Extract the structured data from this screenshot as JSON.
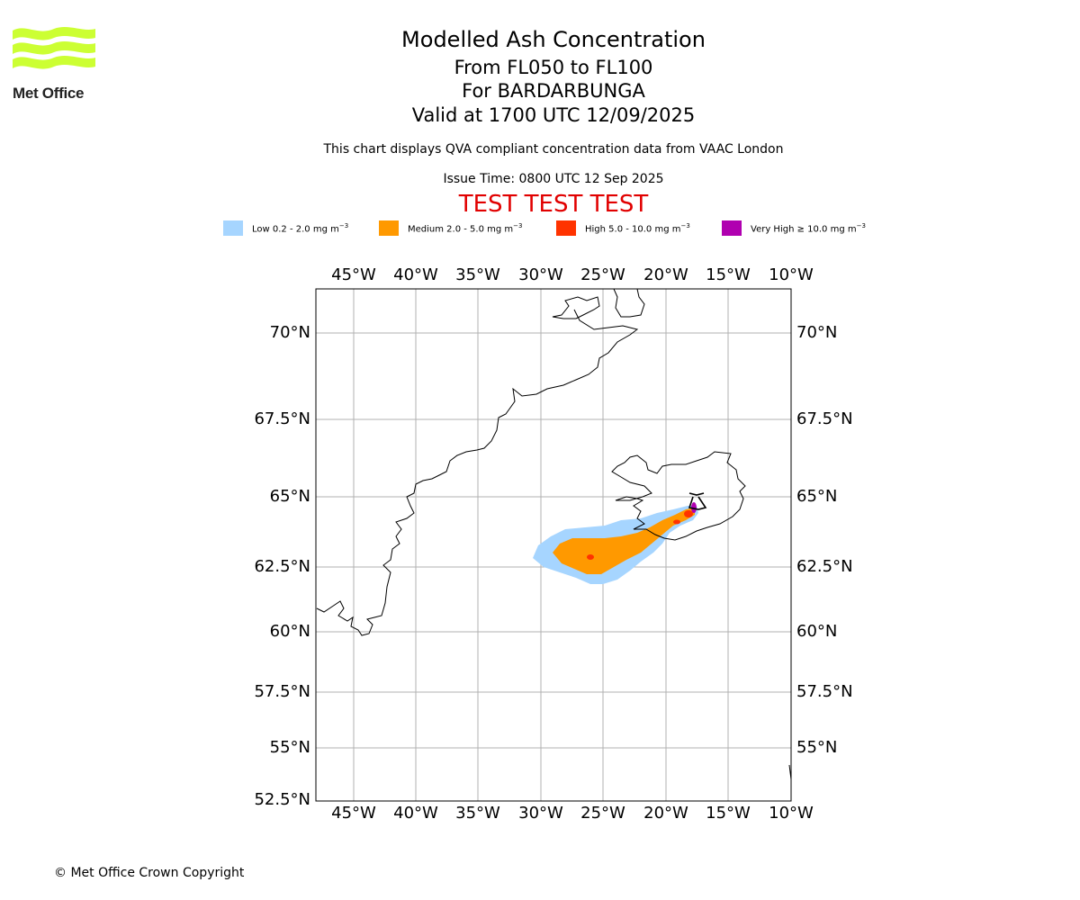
{
  "logo": {
    "text": "Met Office",
    "color": "#ccff33"
  },
  "header": {
    "title": "Modelled Ash Concentration",
    "levels": "From FL050 to FL100",
    "volcano": "For BARDARBUNGA",
    "valid": "Valid at 1700 UTC 12/09/2025",
    "description": "This chart displays QVA compliant concentration data from VAAC London",
    "issue_time": "Issue Time: 0800 UTC 12 Sep 2025",
    "test_banner": "TEST TEST TEST"
  },
  "legend": [
    {
      "label": "Low 0.2 - 2.0 mg m",
      "color": "#a6d5ff"
    },
    {
      "label": "Medium 2.0 - 5.0 mg m",
      "color": "#ff9900"
    },
    {
      "label": "High 5.0 - 10.0 mg m",
      "color": "#ff3300"
    },
    {
      "label": "Very High  ≥  10.0 mg m",
      "color": "#b000b0"
    }
  ],
  "legend_unit_exponent": "−3",
  "map": {
    "lon_labels": [
      "45°W",
      "40°W",
      "35°W",
      "30°W",
      "25°W",
      "20°W",
      "15°W",
      "10°W"
    ],
    "lat_labels": [
      "70°N",
      "67.5°N",
      "65°N",
      "62.5°N",
      "60°N",
      "57.5°N",
      "55°N",
      "52.5°N"
    ],
    "lon_range": [
      -48,
      -10
    ],
    "lat_range": [
      52.5,
      71.5
    ]
  },
  "footer": {
    "copyright": "© Met Office Crown Copyright"
  }
}
